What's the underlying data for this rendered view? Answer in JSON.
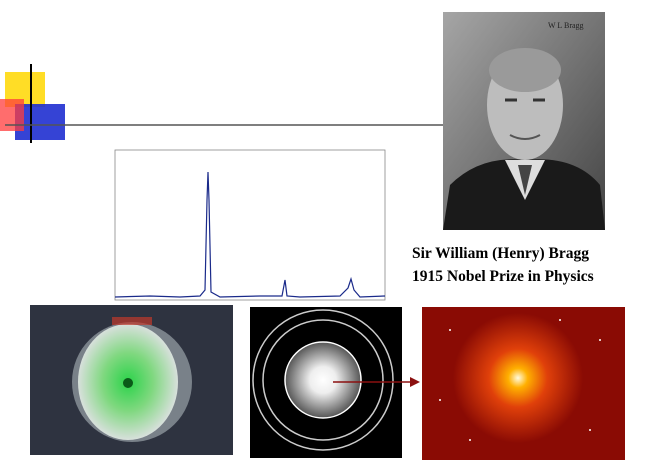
{
  "caption": {
    "line1": "Sir William (Henry) Bragg",
    "line2": "1915 Nobel Prize in Physics"
  }
}
